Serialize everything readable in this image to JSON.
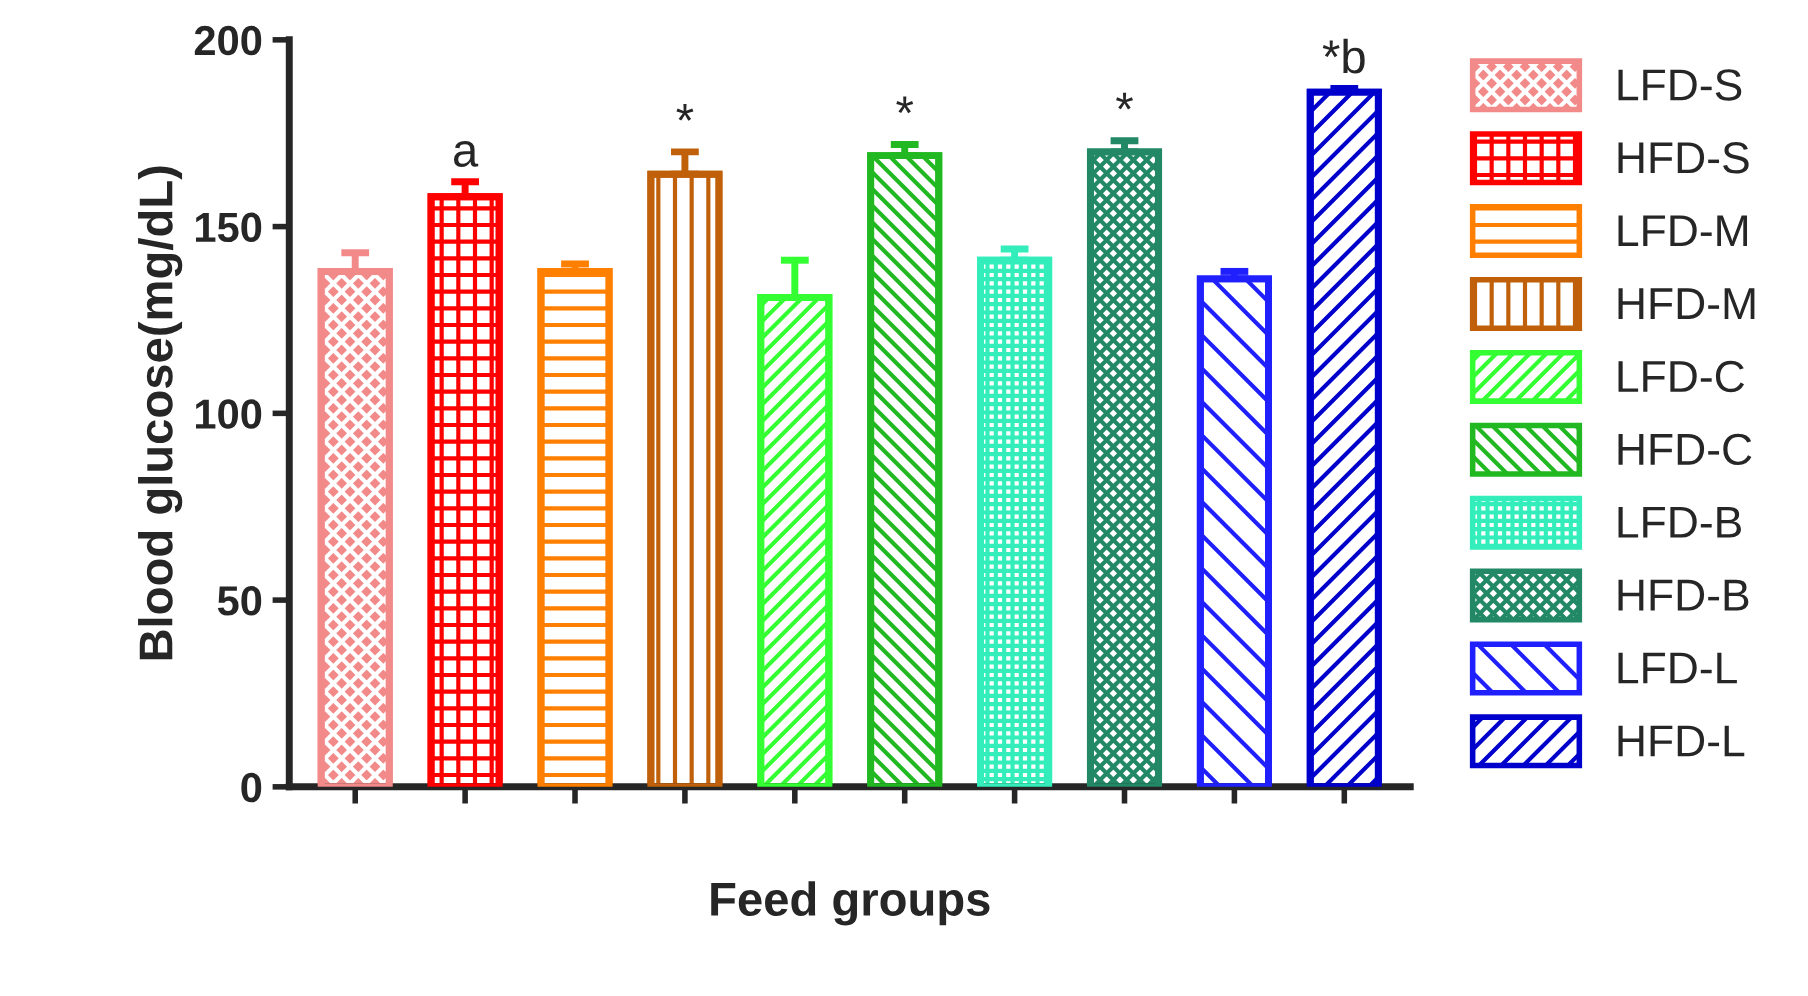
{
  "chart_data": {
    "type": "bar",
    "xlabel": "Feed groups",
    "ylabel": "Blood glucose(mg/dL)",
    "categories": [
      null,
      null,
      null,
      null,
      null,
      null,
      null,
      null,
      null,
      null
    ],
    "series": [
      {
        "name": "LFD-S",
        "color": "#f28a8a",
        "values": [
          138,
          null,
          null,
          null,
          null,
          null,
          null,
          null,
          null,
          null
        ],
        "errors": [
          [
            138,
            143
          ],
          null,
          null,
          null,
          null,
          null,
          null,
          null,
          null,
          null
        ]
      },
      {
        "name": "HFD-S",
        "color": "#ff0000",
        "values": [
          null,
          158,
          null,
          null,
          null,
          null,
          null,
          null,
          null,
          null
        ],
        "errors": [
          null,
          [
            158,
            162
          ],
          null,
          null,
          null,
          null,
          null,
          null,
          null,
          null
        ]
      },
      {
        "name": "LFD-M",
        "color": "#ff8000",
        "values": [
          null,
          null,
          138,
          null,
          null,
          null,
          null,
          null,
          null,
          null
        ],
        "errors": [
          null,
          null,
          [
            138,
            140
          ],
          null,
          null,
          null,
          null,
          null,
          null,
          null
        ]
      },
      {
        "name": "HFD-M",
        "color": "#c0600a",
        "values": [
          null,
          null,
          null,
          164,
          null,
          null,
          null,
          null,
          null,
          null
        ],
        "errors": [
          null,
          null,
          null,
          [
            164,
            170
          ],
          null,
          null,
          null,
          null,
          null,
          null
        ]
      },
      {
        "name": "LFD-C",
        "color": "#33ff33",
        "values": [
          null,
          null,
          null,
          null,
          131,
          null,
          null,
          null,
          null,
          null
        ],
        "errors": [
          null,
          null,
          null,
          null,
          [
            131,
            141
          ],
          null,
          null,
          null,
          null,
          null
        ]
      },
      {
        "name": "HFD-C",
        "color": "#22b822",
        "values": [
          null,
          null,
          null,
          null,
          null,
          169,
          null,
          null,
          null,
          null
        ],
        "errors": [
          null,
          null,
          null,
          null,
          null,
          [
            169,
            172
          ],
          null,
          null,
          null,
          null
        ]
      },
      {
        "name": "LFD-B",
        "color": "#33eebb",
        "values": [
          null,
          null,
          null,
          null,
          null,
          null,
          141,
          null,
          null,
          null
        ],
        "errors": [
          null,
          null,
          null,
          null,
          null,
          null,
          [
            141,
            144
          ],
          null,
          null,
          null
        ]
      },
      {
        "name": "HFD-B",
        "color": "#228866",
        "values": [
          null,
          null,
          null,
          null,
          null,
          null,
          null,
          170,
          null,
          null
        ],
        "errors": [
          null,
          null,
          null,
          null,
          null,
          null,
          null,
          [
            170,
            173
          ],
          null,
          null
        ]
      },
      {
        "name": "LFD-L",
        "color": "#2020ff",
        "values": [
          null,
          null,
          null,
          null,
          null,
          null,
          null,
          null,
          136,
          null
        ],
        "errors": [
          null,
          null,
          null,
          null,
          null,
          null,
          null,
          null,
          [
            136,
            138
          ],
          null
        ]
      },
      {
        "name": "HFD-L",
        "color": "#0000cc",
        "values": [
          null,
          null,
          null,
          null,
          null,
          null,
          null,
          null,
          null,
          186
        ],
        "errors": [
          null,
          null,
          null,
          null,
          null,
          null,
          null,
          null,
          null,
          [
            186,
            187
          ]
        ]
      }
    ],
    "ylim": [
      0,
      200
    ],
    "yticks": [
      0,
      50,
      100,
      150,
      200
    ],
    "annotations": [
      {
        "text": "a",
        "y": 162
      },
      {
        "text": "*",
        "y": 170
      },
      {
        "text": "*",
        "y": 172
      },
      {
        "text": "*",
        "y": 173
      },
      {
        "text": "*b",
        "y": 187
      }
    ],
    "tick_labels": "y",
    "legend": "right",
    "grid": false
  }
}
